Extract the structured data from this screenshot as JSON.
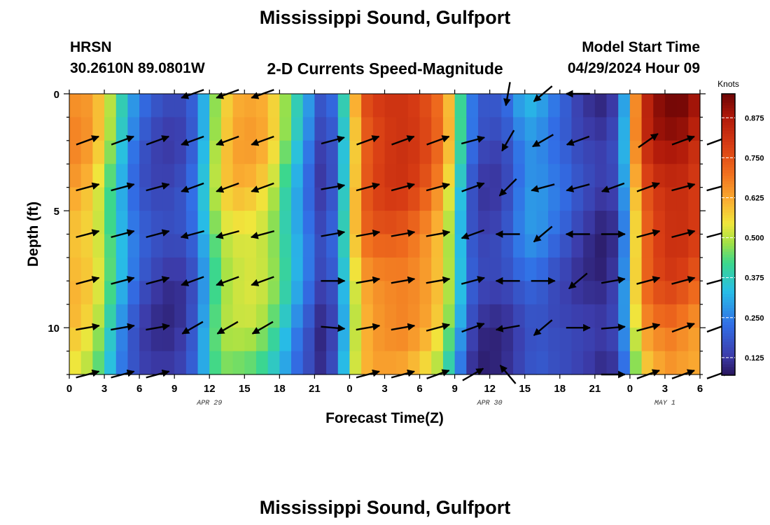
{
  "chart_data": {
    "type": "heatmap",
    "title": "Mississippi Sound, Gulfport",
    "footer_title": "Mississippi Sound, Gulfport",
    "model": "HRSN",
    "location": "30.2610N  89.0801W",
    "subtitle": "2-D Currents Speed-Magnitude",
    "model_start_label": "Model Start Time",
    "model_start": "04/29/2024 Hour 09",
    "xlabel": "Forecast Time(Z)",
    "ylabel": "Depth (ft)",
    "x_range_hours": [
      0,
      54
    ],
    "y_range_ft": [
      0,
      12
    ],
    "x_tick_labels": [
      "0",
      "3",
      "6",
      "9",
      "12",
      "15",
      "18",
      "21",
      "0",
      "3",
      "6",
      "9",
      "12",
      "15",
      "18",
      "21",
      "0",
      "3",
      "6"
    ],
    "y_ticks": [
      0,
      5,
      10
    ],
    "date_labels": [
      {
        "text": "APR 29",
        "hour": 12
      },
      {
        "text": "APR 30",
        "hour": 36
      },
      {
        "text": "MAY 1",
        "hour": 51
      }
    ],
    "colorbar": {
      "unit": "Knots",
      "min": 0.07,
      "max": 0.95,
      "ticks": [
        "0.125",
        "0.250",
        "0.375",
        "0.500",
        "0.625",
        "0.750",
        "0.875"
      ],
      "tick_values": [
        0.125,
        0.25,
        0.375,
        0.5,
        0.625,
        0.75,
        0.875
      ]
    },
    "speed_profile_by_hour": {
      "hours": [
        0,
        1,
        2,
        3,
        4,
        5,
        6,
        7,
        8,
        9,
        10,
        11,
        12,
        13,
        14,
        15,
        16,
        17,
        18,
        19,
        20,
        21,
        22,
        23,
        24,
        25,
        26,
        27,
        28,
        29,
        30,
        31,
        32,
        33,
        34,
        35,
        36,
        37,
        38,
        39,
        40,
        41,
        42,
        43,
        44,
        45,
        46,
        47,
        48,
        49,
        50,
        51,
        52,
        53,
        54
      ],
      "surface_knots": [
        0.66,
        0.64,
        0.58,
        0.48,
        0.36,
        0.26,
        0.2,
        0.17,
        0.16,
        0.17,
        0.22,
        0.34,
        0.5,
        0.6,
        0.64,
        0.64,
        0.62,
        0.56,
        0.46,
        0.36,
        0.26,
        0.16,
        0.2,
        0.38,
        0.62,
        0.78,
        0.82,
        0.84,
        0.84,
        0.82,
        0.78,
        0.72,
        0.6,
        0.4,
        0.22,
        0.16,
        0.16,
        0.2,
        0.28,
        0.32,
        0.3,
        0.26,
        0.22,
        0.17,
        0.14,
        0.12,
        0.14,
        0.3,
        0.66,
        0.84,
        0.9,
        0.92,
        0.92,
        0.88,
        0.84
      ],
      "bottom_knots": [
        0.55,
        0.52,
        0.46,
        0.36,
        0.26,
        0.19,
        0.14,
        0.12,
        0.11,
        0.12,
        0.17,
        0.28,
        0.4,
        0.44,
        0.44,
        0.44,
        0.42,
        0.38,
        0.32,
        0.24,
        0.18,
        0.12,
        0.16,
        0.32,
        0.5,
        0.58,
        0.6,
        0.6,
        0.6,
        0.58,
        0.55,
        0.5,
        0.4,
        0.26,
        0.14,
        0.11,
        0.11,
        0.12,
        0.14,
        0.16,
        0.16,
        0.14,
        0.13,
        0.12,
        0.11,
        0.1,
        0.12,
        0.24,
        0.48,
        0.6,
        0.64,
        0.66,
        0.64,
        0.62,
        0.56
      ]
    },
    "vector_columns_hours": [
      0,
      3,
      6,
      9,
      12,
      15,
      18,
      21,
      24,
      27,
      30,
      33,
      36,
      39,
      42,
      45,
      48,
      51,
      54
    ],
    "vector_rows_ft": [
      0,
      2,
      4,
      6,
      8,
      10,
      12
    ],
    "vectors_angle_deg": [
      [
        null,
        null,
        null,
        200,
        200,
        200,
        null,
        null,
        null,
        null,
        null,
        null,
        260,
        220,
        180,
        null,
        null,
        null,
        null
      ],
      [
        20,
        20,
        20,
        200,
        200,
        200,
        null,
        15,
        20,
        20,
        20,
        15,
        240,
        210,
        200,
        null,
        35,
        20,
        20
      ],
      [
        15,
        15,
        15,
        200,
        200,
        200,
        null,
        10,
        15,
        15,
        15,
        20,
        225,
        195,
        195,
        200,
        20,
        15,
        15
      ],
      [
        15,
        15,
        15,
        195,
        195,
        195,
        null,
        10,
        10,
        10,
        10,
        200,
        180,
        220,
        180,
        0,
        15,
        15,
        15
      ],
      [
        15,
        15,
        15,
        200,
        200,
        200,
        null,
        0,
        10,
        10,
        10,
        15,
        180,
        0,
        220,
        10,
        15,
        15,
        15
      ],
      [
        10,
        10,
        10,
        210,
        210,
        210,
        null,
        355,
        10,
        10,
        15,
        20,
        190,
        220,
        0,
        5,
        15,
        20,
        20
      ],
      [
        15,
        15,
        15,
        null,
        null,
        null,
        null,
        null,
        15,
        15,
        20,
        30,
        130,
        null,
        null,
        0,
        20,
        20,
        20
      ]
    ]
  }
}
